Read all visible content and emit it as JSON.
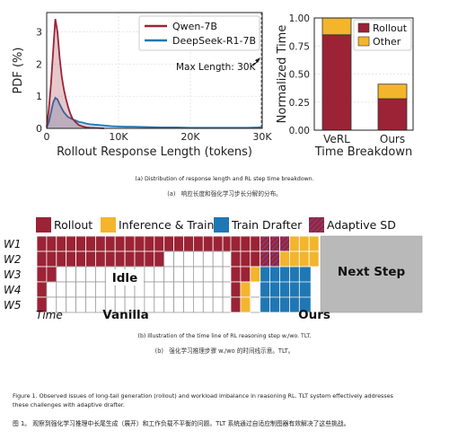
{
  "chart_data": [
    {
      "type": "area",
      "ylabel": "PDF (%)",
      "xlabel": "Rollout Response Length (tokens)",
      "xticks": [
        "0",
        "10K",
        "20K",
        "30K"
      ],
      "yticks": [
        "0",
        "1",
        "2",
        "3"
      ],
      "xlim": [
        0,
        30000
      ],
      "ylim": [
        0,
        3.6
      ],
      "grid": true,
      "legend_position": "top-right",
      "annotation": "Max Length: 30K",
      "max_length_x": 30000,
      "series": [
        {
          "name": "Qwen-7B",
          "color": "#9b2335",
          "x": [
            0,
            300,
            600,
            900,
            1200,
            1500,
            1800,
            2100,
            2400,
            2700,
            3000,
            3300,
            3600,
            4000,
            4500,
            5000,
            5500,
            6000,
            7000,
            8000
          ],
          "y": [
            0.05,
            0.6,
            1.4,
            2.4,
            3.4,
            3.0,
            2.2,
            1.6,
            1.2,
            0.9,
            0.65,
            0.45,
            0.3,
            0.2,
            0.1,
            0.06,
            0.03,
            0.02,
            0.01,
            0.0
          ]
        },
        {
          "name": "DeepSeek-R1-7B",
          "color": "#1f77b4",
          "x": [
            0,
            300,
            600,
            900,
            1200,
            1500,
            1800,
            2100,
            2400,
            2700,
            3000,
            3300,
            3600,
            4000,
            4500,
            5000,
            5500,
            6000,
            7000,
            8000,
            9000,
            10000,
            11000,
            12000,
            14000,
            16000,
            18000,
            20000,
            22000,
            24000,
            26000,
            28000,
            29500,
            30000
          ],
          "y": [
            0.02,
            0.2,
            0.5,
            0.8,
            0.95,
            0.9,
            0.75,
            0.62,
            0.5,
            0.42,
            0.35,
            0.32,
            0.28,
            0.25,
            0.2,
            0.18,
            0.15,
            0.13,
            0.11,
            0.09,
            0.07,
            0.06,
            0.05,
            0.05,
            0.04,
            0.03,
            0.03,
            0.02,
            0.02,
            0.02,
            0.02,
            0.02,
            0.03,
            0.04
          ]
        }
      ]
    },
    {
      "type": "bar",
      "stacked": true,
      "categories": [
        "VeRL",
        "Ours"
      ],
      "ylabel": "Normalized Time",
      "xlabel": "Time Breakdown",
      "ylim": [
        0,
        1.0
      ],
      "yticks": [
        "0.00",
        "0.25",
        "0.50",
        "0.75",
        "1.00"
      ],
      "grid": true,
      "legend_position": "top-right",
      "series": [
        {
          "name": "Rollout",
          "color": "#9b2335",
          "values": [
            0.85,
            0.28
          ]
        },
        {
          "name": "Other",
          "color": "#f3b52c",
          "values": [
            0.15,
            0.13
          ]
        }
      ]
    }
  ],
  "captions": {
    "a_en": "(a) Distribution of response length and RL step time breakdown.",
    "a_cn_label": "(a)",
    "a_cn": "响应长度和强化学习步长分解的分布。",
    "b_en": "(b) Illustration of the time line of RL reasoning step w./wo. TLT.",
    "b_cn_label": "(b)",
    "b_cn": "强化学习推理步骤 w./wo 的时间线示意。TLT。",
    "figure_en_1": "Figure 1. Observed issues of long-tail generation (rollout) and workload imbalance in reasoning RL. TLT system effectively addresses",
    "figure_en_2": "these challenges with adaptive drafter.",
    "figure_cn": "图 1。  观察到强化学习推理中长尾生成（展开）和工作负载不平衡的问题。TLT 系统通过自适应制图器有效解决了这些挑战。"
  },
  "timeline": {
    "legend": [
      {
        "label": "Rollout",
        "color": "#9b2335"
      },
      {
        "label": "Inference & Train",
        "color": "#f3b52c"
      },
      {
        "label": "Train Drafter",
        "color": "#1f77b4"
      },
      {
        "label": "Adaptive SD",
        "color": "#9b2335",
        "hatched": true
      }
    ],
    "workers": [
      "W1",
      "W2",
      "W3",
      "W4",
      "W5"
    ],
    "rollout_cells": [
      20,
      13,
      2,
      1,
      1
    ],
    "ours_rollout_cells": [
      3,
      3,
      2,
      1,
      1
    ],
    "ours_adaptive_cells": [
      3,
      2,
      0,
      0,
      0
    ],
    "idle_label": "Idle",
    "next_step_label": "Next Step",
    "time_label": "Time",
    "vanilla_label": "Vanilla",
    "ours_label": "Ours"
  },
  "colors": {
    "rollout": "#9b2335",
    "other": "#f3b52c",
    "drafter": "#1f77b4",
    "idle_grid": "#9a9a9a",
    "next_step": "#b9b9b9"
  }
}
